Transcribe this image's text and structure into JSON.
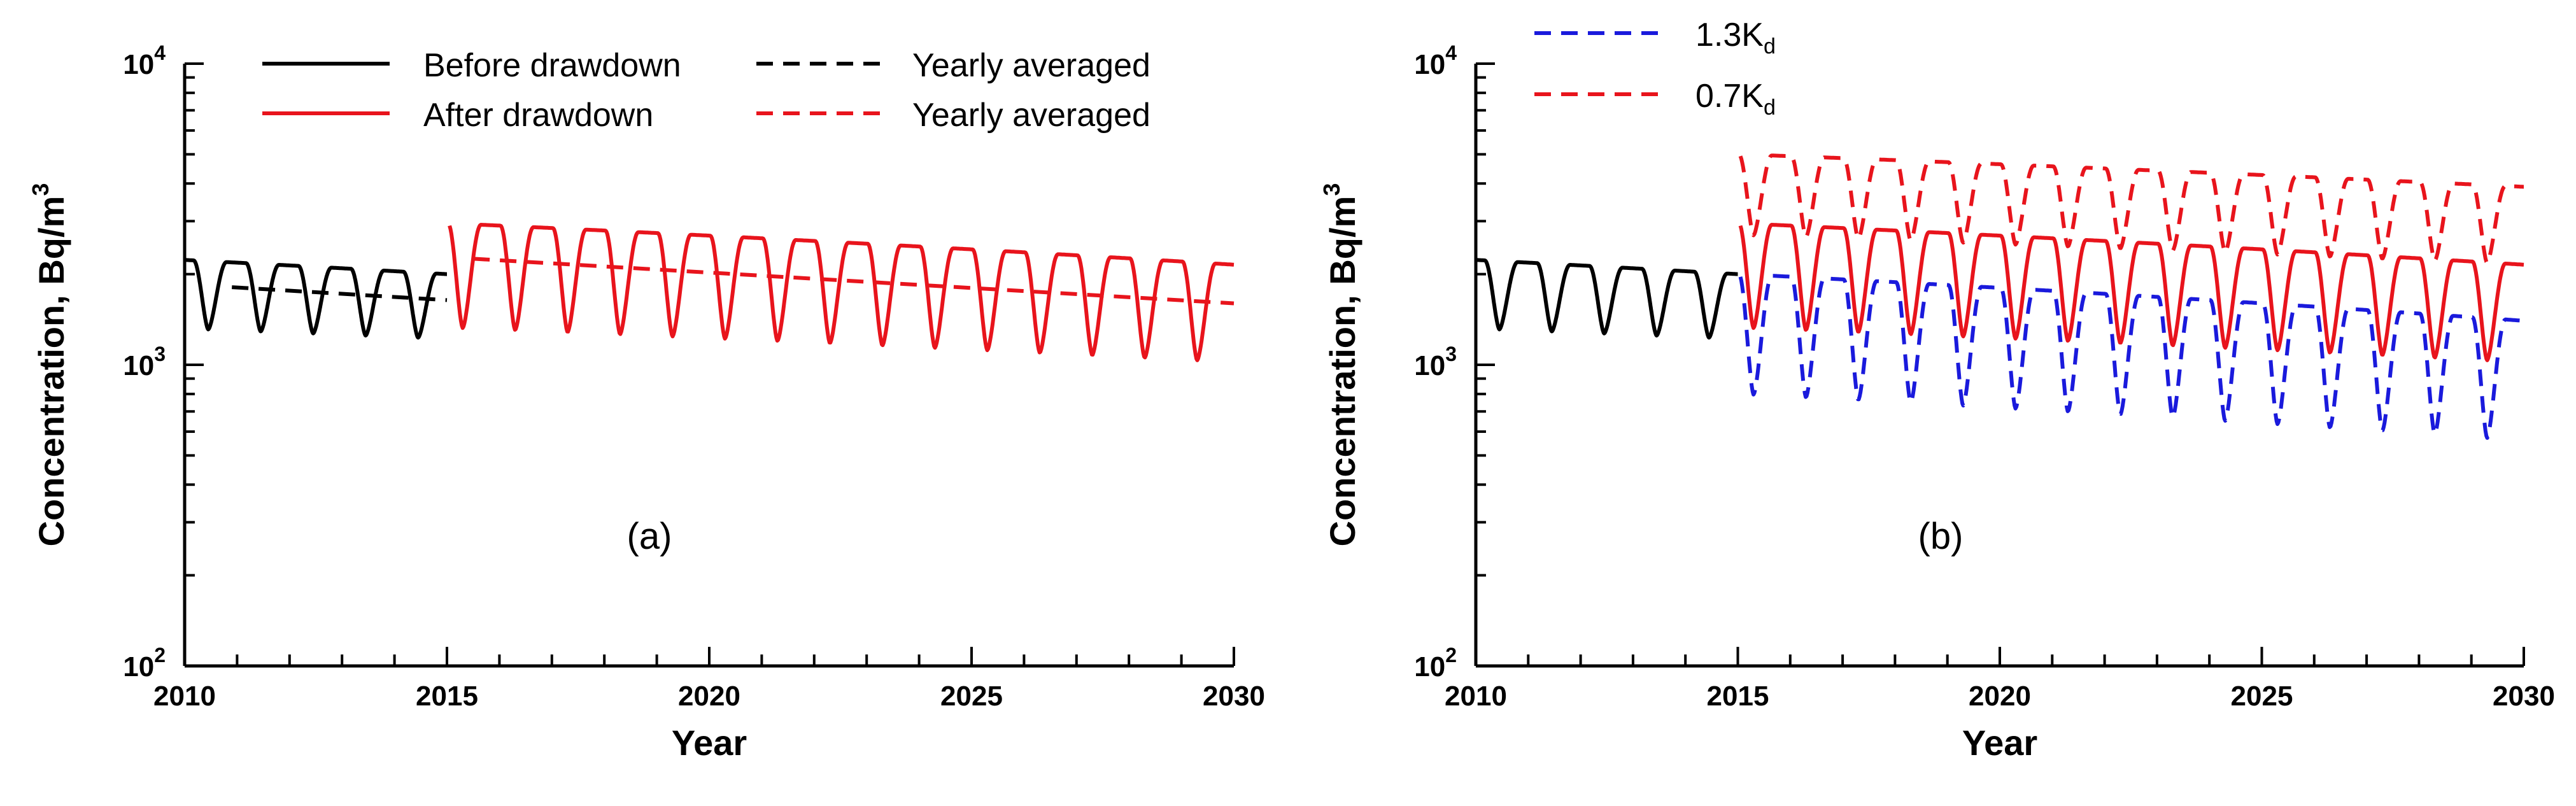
{
  "chart_data": [
    {
      "type": "line",
      "panel_label": "(a)",
      "xlabel": "Year",
      "ylabel": "Concentration, Bq/m",
      "ylabel_superscript": "3",
      "x_ticks": [
        2010,
        2015,
        2020,
        2025,
        2030
      ],
      "xlim": [
        2010,
        2030
      ],
      "y_scale": "log",
      "ylim": [
        100,
        10000
      ],
      "y_ticks": [
        {
          "base": "10",
          "exp": "2",
          "value": 100
        },
        {
          "base": "10",
          "exp": "3",
          "value": 1000
        },
        {
          "base": "10",
          "exp": "4",
          "value": 10000
        }
      ],
      "legend": [
        {
          "label": "Before drawdown",
          "color": "#000000",
          "dash": "solid",
          "column": "left",
          "row": 0
        },
        {
          "label": "After drawdown",
          "color": "#e8141c",
          "dash": "solid",
          "column": "left",
          "row": 1
        },
        {
          "label": "Yearly averaged",
          "color": "#000000",
          "dash": "dashed",
          "column": "right",
          "row": 0
        },
        {
          "label": "Yearly averaged",
          "color": "#e8141c",
          "dash": "dashed",
          "column": "right",
          "row": 1
        }
      ],
      "series": [
        {
          "name": "Before drawdown",
          "color": "#000000",
          "dash": "solid",
          "kind": "seasonal",
          "x_start": 2010,
          "x_end": 2015,
          "peak_start": 2230,
          "peak_end": 2000,
          "trough_start": 1320,
          "trough_end": 1220,
          "phase": 0.55
        },
        {
          "name": "After drawdown",
          "color": "#e8141c",
          "dash": "solid",
          "kind": "seasonal",
          "x_start": 2015.05,
          "x_end": 2030,
          "peak_start": 2950,
          "peak_end": 2150,
          "trough_start": 1330,
          "trough_end": 1020,
          "phase": 0.7
        },
        {
          "name": "Yearly averaged (before)",
          "color": "#000000",
          "dash": "dashed",
          "kind": "line",
          "x": [
            2010.9,
            2015
          ],
          "y": [
            1810,
            1640
          ]
        },
        {
          "name": "Yearly averaged (after)",
          "color": "#e8141c",
          "dash": "dashed",
          "kind": "line",
          "x": [
            2015.5,
            2030
          ],
          "y": [
            2250,
            1600
          ]
        }
      ]
    },
    {
      "type": "line",
      "panel_label": "(b)",
      "xlabel": "Year",
      "ylabel": "Concentration, Bq/m",
      "ylabel_superscript": "3",
      "x_ticks": [
        2010,
        2015,
        2020,
        2025,
        2030
      ],
      "xlim": [
        2010,
        2030
      ],
      "y_scale": "log",
      "ylim": [
        100,
        10000
      ],
      "y_ticks": [
        {
          "base": "10",
          "exp": "2",
          "value": 100
        },
        {
          "base": "10",
          "exp": "3",
          "value": 1000
        },
        {
          "base": "10",
          "exp": "4",
          "value": 10000
        }
      ],
      "legend": [
        {
          "label": "1.3K",
          "subscript": "d",
          "color": "#1a1adc",
          "dash": "dashed",
          "column": "left",
          "row": 0
        },
        {
          "label": "0.7K",
          "subscript": "d",
          "color": "#e8141c",
          "dash": "dashed",
          "column": "left",
          "row": 1
        }
      ],
      "series": [
        {
          "name": "Before drawdown",
          "color": "#000000",
          "dash": "solid",
          "kind": "seasonal",
          "x_start": 2010,
          "x_end": 2015,
          "peak_start": 2230,
          "peak_end": 2000,
          "trough_start": 1320,
          "trough_end": 1220,
          "phase": 0.55
        },
        {
          "name": "After drawdown",
          "color": "#e8141c",
          "dash": "solid",
          "kind": "seasonal",
          "x_start": 2015.05,
          "x_end": 2030,
          "peak_start": 2950,
          "peak_end": 2150,
          "trough_start": 1330,
          "trough_end": 1020,
          "phase": 0.7
        },
        {
          "name": "1.3Kd",
          "color": "#1a1adc",
          "dash": "dashed",
          "kind": "seasonal",
          "x_start": 2015.05,
          "x_end": 2030,
          "peak_start": 2000,
          "peak_end": 1400,
          "trough_start": 800,
          "trough_end": 560,
          "phase": 0.7
        },
        {
          "name": "0.7Kd",
          "color": "#e8141c",
          "dash": "dashed",
          "kind": "seasonal",
          "x_start": 2015.05,
          "x_end": 2030,
          "peak_start": 5000,
          "peak_end": 3900,
          "trough_start": 2700,
          "trough_end": 2150,
          "phase": 0.7
        }
      ]
    }
  ]
}
